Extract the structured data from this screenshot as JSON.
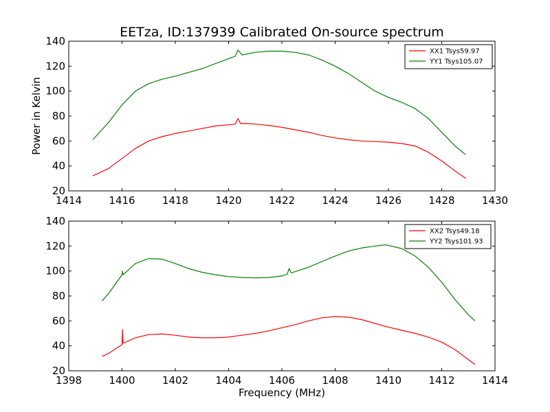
{
  "figure": {
    "title": "EETza, ID:137939 Calibrated On-source spectrum",
    "ylabel": "Power in Kelvin",
    "xlabel": "Frequency (MHz)"
  },
  "chart_data": [
    {
      "type": "line",
      "title": "EETza, ID:137939 Calibrated On-source spectrum",
      "ylabel": "Power in Kelvin",
      "xlabel": "",
      "xlim": [
        1414,
        1430
      ],
      "ylim": [
        20,
        140
      ],
      "xticks": [
        1414,
        1416,
        1418,
        1420,
        1422,
        1424,
        1426,
        1428,
        1430
      ],
      "yticks": [
        20,
        40,
        60,
        80,
        100,
        120,
        140
      ],
      "grid": false,
      "legend_position": "top-right",
      "series": [
        {
          "name": "XX1 Tsys59.97",
          "color": "#ff0000",
          "points": [
            [
              1414.9,
              32
            ],
            [
              1415.5,
              38
            ],
            [
              1416,
              46
            ],
            [
              1416.5,
              54
            ],
            [
              1417,
              60
            ],
            [
              1417.5,
              63.5
            ],
            [
              1418,
              66
            ],
            [
              1418.5,
              68
            ],
            [
              1419,
              70
            ],
            [
              1419.5,
              72
            ],
            [
              1420,
              73
            ],
            [
              1420.25,
              73.5
            ],
            [
              1420.35,
              78
            ],
            [
              1420.45,
              74
            ],
            [
              1420.7,
              74
            ],
            [
              1421,
              73.5
            ],
            [
              1421.5,
              72.5
            ],
            [
              1422,
              71
            ],
            [
              1422.5,
              69
            ],
            [
              1423,
              67
            ],
            [
              1423.5,
              64.5
            ],
            [
              1424,
              62.5
            ],
            [
              1424.5,
              61
            ],
            [
              1425,
              60
            ],
            [
              1425.5,
              59.5
            ],
            [
              1426,
              59
            ],
            [
              1426.5,
              58
            ],
            [
              1427,
              56
            ],
            [
              1427.5,
              51
            ],
            [
              1428,
              44
            ],
            [
              1428.5,
              36
            ],
            [
              1428.9,
              30
            ]
          ]
        },
        {
          "name": "YY1 Tsys105.07",
          "color": "#008000",
          "points": [
            [
              1414.9,
              61
            ],
            [
              1415.5,
              75
            ],
            [
              1416,
              89
            ],
            [
              1416.5,
              100
            ],
            [
              1417,
              106
            ],
            [
              1417.5,
              109.5
            ],
            [
              1418,
              112
            ],
            [
              1418.5,
              115
            ],
            [
              1419,
              118
            ],
            [
              1419.5,
              122
            ],
            [
              1420,
              126
            ],
            [
              1420.25,
              128
            ],
            [
              1420.35,
              133
            ],
            [
              1420.5,
              129
            ],
            [
              1421,
              131
            ],
            [
              1421.5,
              132
            ],
            [
              1422,
              132
            ],
            [
              1422.5,
              131
            ],
            [
              1423,
              129
            ],
            [
              1423.5,
              125
            ],
            [
              1424,
              120
            ],
            [
              1424.5,
              114
            ],
            [
              1425,
              107
            ],
            [
              1425.5,
              100
            ],
            [
              1426,
              95
            ],
            [
              1426.5,
              91
            ],
            [
              1427,
              86
            ],
            [
              1427.5,
              78
            ],
            [
              1428,
              67
            ],
            [
              1428.5,
              56
            ],
            [
              1428.9,
              49
            ]
          ]
        }
      ]
    },
    {
      "type": "line",
      "title": "",
      "ylabel": "Power in Kelvin",
      "xlabel": "Frequency (MHz)",
      "xlim": [
        1398,
        1414
      ],
      "ylim": [
        20,
        140
      ],
      "xticks": [
        1398,
        1400,
        1402,
        1404,
        1406,
        1408,
        1410,
        1412,
        1414
      ],
      "yticks": [
        20,
        40,
        60,
        80,
        100,
        120,
        140
      ],
      "grid": false,
      "legend_position": "top-right",
      "series": [
        {
          "name": "XX2 Tsys49.18",
          "color": "#ff0000",
          "points": [
            [
              1399.25,
              31.5
            ],
            [
              1399.5,
              34
            ],
            [
              1400,
              41
            ],
            [
              1400.02,
              53
            ],
            [
              1400.04,
              42
            ],
            [
              1400.5,
              46.5
            ],
            [
              1401,
              49
            ],
            [
              1401.5,
              49.5
            ],
            [
              1402,
              48.5
            ],
            [
              1402.5,
              47
            ],
            [
              1403,
              46.5
            ],
            [
              1403.5,
              46.5
            ],
            [
              1404,
              47
            ],
            [
              1404.5,
              48.5
            ],
            [
              1405,
              50
            ],
            [
              1405.5,
              52
            ],
            [
              1406,
              54.5
            ],
            [
              1406.5,
              57
            ],
            [
              1407,
              60
            ],
            [
              1407.5,
              62.5
            ],
            [
              1408,
              63.5
            ],
            [
              1408.5,
              63
            ],
            [
              1409,
              61
            ],
            [
              1409.5,
              58
            ],
            [
              1410,
              55
            ],
            [
              1410.5,
              52.5
            ],
            [
              1411,
              50
            ],
            [
              1411.5,
              47
            ],
            [
              1412,
              43
            ],
            [
              1412.5,
              37
            ],
            [
              1413,
              29
            ],
            [
              1413.25,
              25
            ]
          ]
        },
        {
          "name": "YY2 Tsys101.93",
          "color": "#008000",
          "points": [
            [
              1399.25,
              76
            ],
            [
              1399.5,
              82
            ],
            [
              1400,
              97
            ],
            [
              1400.02,
              100
            ],
            [
              1400.04,
              97
            ],
            [
              1400.5,
              106
            ],
            [
              1401,
              110
            ],
            [
              1401.5,
              109.5
            ],
            [
              1402,
              106
            ],
            [
              1402.5,
              102
            ],
            [
              1403,
              99
            ],
            [
              1403.5,
              97
            ],
            [
              1404,
              95.5
            ],
            [
              1404.5,
              94.8
            ],
            [
              1405,
              94.5
            ],
            [
              1405.5,
              94.8
            ],
            [
              1406,
              96
            ],
            [
              1406.2,
              97.5
            ],
            [
              1406.27,
              102
            ],
            [
              1406.35,
              98.5
            ],
            [
              1406.5,
              99.5
            ],
            [
              1407,
              103
            ],
            [
              1407.5,
              107.5
            ],
            [
              1408,
              112
            ],
            [
              1408.5,
              116
            ],
            [
              1409,
              118.5
            ],
            [
              1409.5,
              120
            ],
            [
              1409.9,
              121
            ],
            [
              1410,
              120.5
            ],
            [
              1410.5,
              118
            ],
            [
              1411,
              112
            ],
            [
              1411.5,
              103
            ],
            [
              1412,
              91
            ],
            [
              1412.5,
              77
            ],
            [
              1413,
              65
            ],
            [
              1413.25,
              60
            ]
          ]
        }
      ]
    }
  ]
}
